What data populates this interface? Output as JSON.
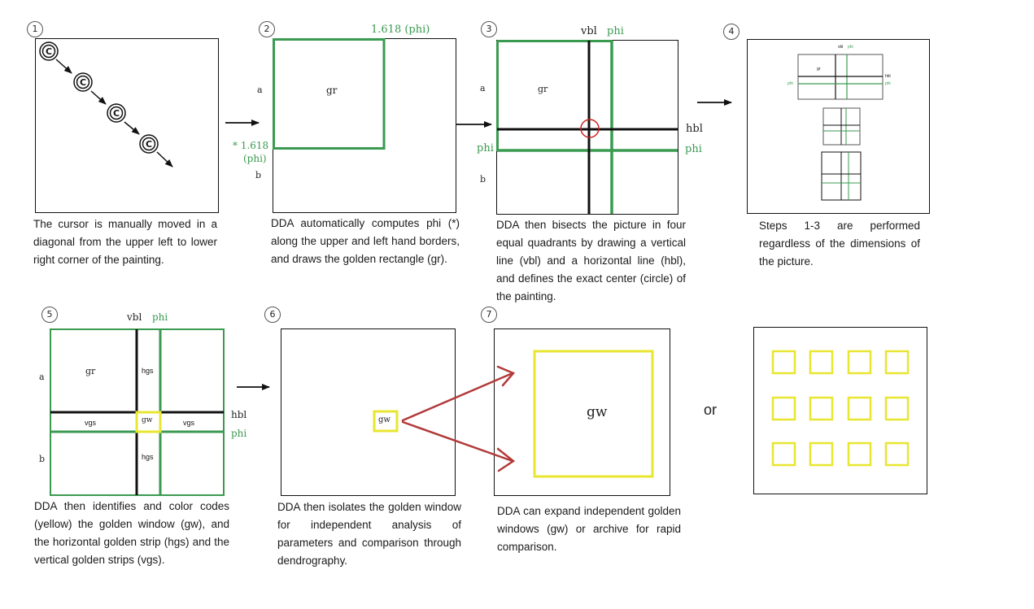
{
  "colors": {
    "green": "#3a9a50",
    "yellow": "#e8e630",
    "arrow_red": "#b23a3a",
    "circle_red": "#cc2222"
  },
  "steps": {
    "s1": {
      "num": "1",
      "caption": "The cursor is manually moved in a diagonal from the upper left to lower right corner of the painting.",
      "cursor_glyph": "C"
    },
    "s2": {
      "num": "2",
      "caption": "DDA automatically computes phi (*) along the upper and left hand borders, and draws the golden rectangle (gr).",
      "top_phi": "1.618 (phi)",
      "left_phi_1": "* 1.618",
      "left_phi_2": "(phi)",
      "a": "a",
      "b": "b",
      "gr": "gr"
    },
    "s3": {
      "num": "3",
      "caption": "DDA then bisects the picture in four equal quadrants by drawing a vertical line (vbl) and a horizontal line (hbl), and defines the exact center (circle) of the painting.",
      "vbl": "vbl",
      "phi": "phi",
      "hbl": "hbl",
      "a": "a",
      "b": "b",
      "gr": "gr"
    },
    "s4": {
      "num": "4",
      "caption": "Steps 1-3 are performed regardless of the dimensions of the picture."
    },
    "s5": {
      "num": "5",
      "caption": "DDA then identifies and color codes (yellow) the golden window (gw), and the horizontal golden strip (hgs) and the vertical golden strips (vgs).",
      "vbl": "vbl",
      "phi": "phi",
      "hbl": "hbl",
      "a": "a",
      "b": "b",
      "gr": "gr",
      "hgs": "hgs",
      "vgs": "vgs",
      "gw": "gw"
    },
    "s6": {
      "num": "6",
      "caption": "DDA then isolates the golden window for independent analysis of parameters and comparison through dendrography.",
      "gw": "gw"
    },
    "s7": {
      "num": "7",
      "caption": "DDA can expand independent golden windows (gw) or archive for rapid comparison.",
      "gw": "gw"
    },
    "or": "or"
  }
}
